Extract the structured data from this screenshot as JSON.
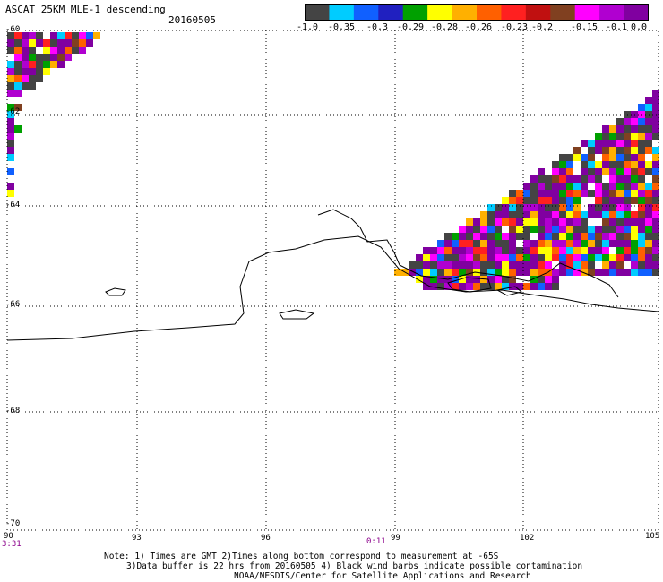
{
  "title": "ASCAT 25KM MLE-1 descending",
  "date": "20160505",
  "colorbar": {
    "colors": [
      "#444444",
      "#00ccff",
      "#1060ff",
      "#2020c0",
      "#00a000",
      "#ffff00",
      "#ffb000",
      "#ff6000",
      "#ff2020",
      "#c01010",
      "#804020",
      "#ff00ff",
      "#b000d0",
      "#8000a0"
    ],
    "tick_labels": [
      "-1.0",
      "-0.35",
      "-0.3",
      "-0.29",
      "-0.28",
      "-0.26",
      "-0.23",
      "-0.2",
      "-0.15",
      "-0.1",
      "0.0"
    ]
  },
  "lat_labels": [
    "-60",
    "-62",
    "-64",
    "-66",
    "-68",
    "-70"
  ],
  "lon_labels": [
    "90",
    "93",
    "96",
    "99",
    "102",
    "105"
  ],
  "time_labels": [
    "3:31",
    "0:11"
  ],
  "notes": [
    "Note: 1) Times are GMT 2)Times along bottom correspond to measurement at -65S",
    "3)Data buffer is 22 hrs from 20160505 4) Black wind barbs indicate possible contamination",
    "NOAA/NESDIS/Center for Satellite Applications and Research"
  ]
}
